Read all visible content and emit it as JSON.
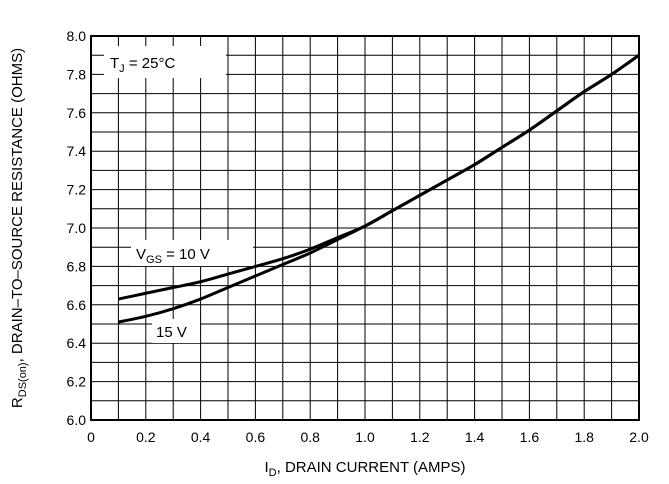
{
  "chart_data": {
    "type": "line",
    "title": "",
    "xlabel": {
      "main": "I",
      "sub": "D",
      "rest": ", DRAIN CURRENT (AMPS)"
    },
    "ylabel": {
      "main": "R",
      "sub": "DS(on)",
      "rest": ", DRAIN–TO–SOURCE RESISTANCE (OHMS)"
    },
    "xlim": [
      0,
      2.0
    ],
    "ylim": [
      6.0,
      8.0
    ],
    "xticks": [
      "0",
      "0.2",
      "0.4",
      "0.6",
      "0.8",
      "1.0",
      "1.2",
      "1.4",
      "1.6",
      "1.8",
      "2.0"
    ],
    "yticks": [
      "6.0",
      "6.2",
      "6.4",
      "6.6",
      "6.8",
      "7.0",
      "7.2",
      "7.4",
      "7.6",
      "7.8",
      "8.0"
    ],
    "grid": true,
    "colors": {
      "line": "#000000",
      "grid": "#000000",
      "background": "#ffffff"
    },
    "annotations": {
      "tj": {
        "main": "T",
        "sub": "J",
        "rest": " =  25°C"
      },
      "vgs10": {
        "main": "V",
        "sub": "GS",
        "rest": " = 10 V"
      },
      "vgs15": {
        "text": "15 V"
      }
    },
    "series": [
      {
        "label": "V_GS = 10 V",
        "x": [
          0.1,
          0.2,
          0.3,
          0.4,
          0.5,
          0.6,
          0.7,
          0.8,
          0.9,
          1.0,
          1.1,
          1.2,
          1.3,
          1.4,
          1.5,
          1.6,
          1.7,
          1.8,
          1.9,
          2.0
        ],
        "y": [
          6.63,
          6.66,
          6.69,
          6.72,
          6.76,
          6.8,
          6.84,
          6.89,
          6.95,
          7.01,
          7.09,
          7.17,
          7.25,
          7.33,
          7.42,
          7.51,
          7.61,
          7.71,
          7.8,
          7.9
        ]
      },
      {
        "label": "15 V",
        "x": [
          0.1,
          0.2,
          0.3,
          0.4,
          0.5,
          0.6,
          0.7,
          0.8,
          0.9,
          1.0,
          1.1,
          1.2,
          1.3,
          1.4,
          1.5,
          1.6,
          1.7,
          1.8,
          1.9,
          2.0
        ],
        "y": [
          6.51,
          6.54,
          6.58,
          6.63,
          6.69,
          6.75,
          6.81,
          6.87,
          6.94,
          7.01,
          7.09,
          7.17,
          7.25,
          7.33,
          7.42,
          7.51,
          7.61,
          7.71,
          7.8,
          7.9
        ]
      }
    ]
  }
}
